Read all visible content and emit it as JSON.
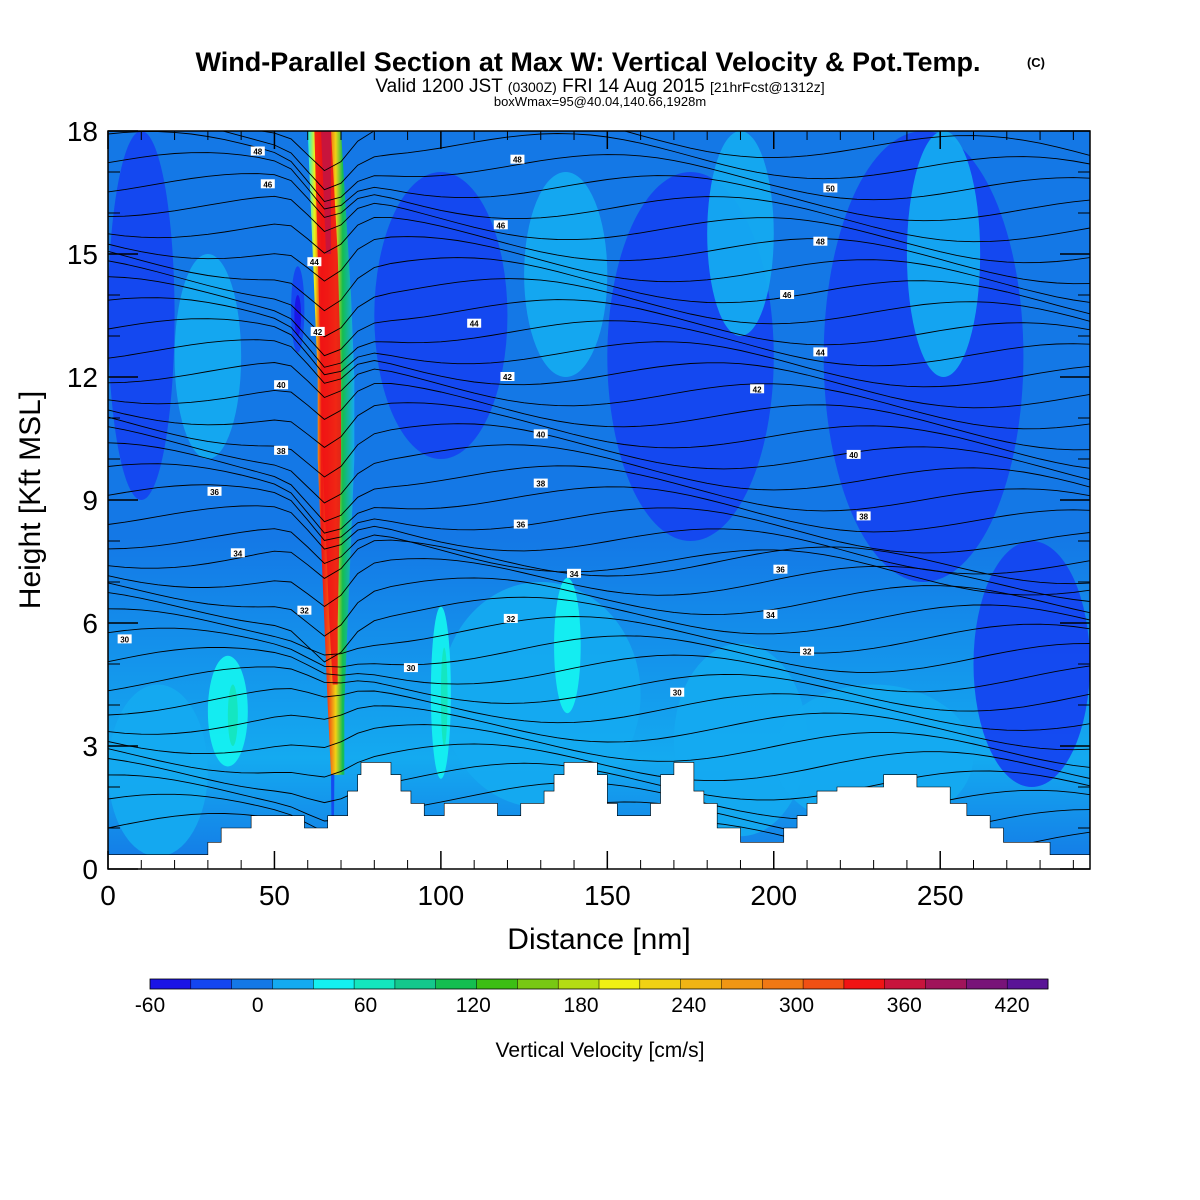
{
  "title": "Wind-Parallel Section at Max W: Vertical Velocity & Pot.Temp.",
  "copyright": "(C)",
  "subtitle_main": "Valid 1200 JST",
  "subtitle_utc": "(0300Z)",
  "subtitle_date": "FRI 14 Aug 2015",
  "subtitle_fcst": "[21hrFcst@1312z]",
  "subtitle2": "boxWmax=95@40.04,140.66,1928m",
  "chart_data": {
    "type": "heatmap",
    "xlabel": "Distance [nm]",
    "ylabel": "Height [Kft MSL]",
    "xlim": [
      0,
      295
    ],
    "ylim": [
      0,
      18
    ],
    "x_ticks": [
      "0",
      "50",
      "100",
      "150",
      "200",
      "250"
    ],
    "x_tick_values": [
      0,
      50,
      100,
      150,
      200,
      250
    ],
    "y_ticks": [
      "0",
      "3",
      "6",
      "9",
      "12",
      "15",
      "18"
    ],
    "y_tick_values": [
      0,
      3,
      6,
      9,
      12,
      15,
      18
    ],
    "colorbar": {
      "label": "Vertical Velocity [cm/s]",
      "min": -60,
      "max": 440,
      "step": 20,
      "tick_labels": [
        "-60",
        "0",
        "60",
        "120",
        "180",
        "240",
        "300",
        "360",
        "420"
      ],
      "tick_values": [
        -60,
        0,
        60,
        120,
        180,
        240,
        300,
        360,
        420
      ],
      "colors": [
        "#1a14e6",
        "#1446f0",
        "#1478e6",
        "#14aaf0",
        "#14f0f0",
        "#14e6be",
        "#14c88c",
        "#14be50",
        "#3cbe14",
        "#78c814",
        "#b4dc14",
        "#f0f014",
        "#f0d214",
        "#f0b414",
        "#f09614",
        "#f07814",
        "#f05014",
        "#f01414",
        "#c8143c",
        "#a0145a",
        "#781478",
        "#5a1496"
      ]
    },
    "theta_contour_labels": [
      {
        "x": 5,
        "z": 5.6,
        "text": "30"
      },
      {
        "x": 91,
        "z": 4.9,
        "text": "30"
      },
      {
        "x": 171,
        "z": 4.3,
        "text": "30"
      },
      {
        "x": 59,
        "z": 6.3,
        "text": "32"
      },
      {
        "x": 121,
        "z": 6.1,
        "text": "32"
      },
      {
        "x": 210,
        "z": 5.3,
        "text": "32"
      },
      {
        "x": 39,
        "z": 7.7,
        "text": "34"
      },
      {
        "x": 140,
        "z": 7.2,
        "text": "34"
      },
      {
        "x": 199,
        "z": 6.2,
        "text": "34"
      },
      {
        "x": 32,
        "z": 9.2,
        "text": "36"
      },
      {
        "x": 124,
        "z": 8.4,
        "text": "36"
      },
      {
        "x": 202,
        "z": 7.3,
        "text": "36"
      },
      {
        "x": 52,
        "z": 10.2,
        "text": "38"
      },
      {
        "x": 130,
        "z": 9.4,
        "text": "38"
      },
      {
        "x": 227,
        "z": 8.6,
        "text": "38"
      },
      {
        "x": 52,
        "z": 11.8,
        "text": "40"
      },
      {
        "x": 130,
        "z": 10.6,
        "text": "40"
      },
      {
        "x": 224,
        "z": 10.1,
        "text": "40"
      },
      {
        "x": 63,
        "z": 13.1,
        "text": "42"
      },
      {
        "x": 120,
        "z": 12.0,
        "text": "42"
      },
      {
        "x": 195,
        "z": 11.7,
        "text": "42"
      },
      {
        "x": 62,
        "z": 14.8,
        "text": "44"
      },
      {
        "x": 110,
        "z": 13.3,
        "text": "44"
      },
      {
        "x": 214,
        "z": 12.6,
        "text": "44"
      },
      {
        "x": 48,
        "z": 16.7,
        "text": "46"
      },
      {
        "x": 118,
        "z": 15.7,
        "text": "46"
      },
      {
        "x": 204,
        "z": 14.0,
        "text": "46"
      },
      {
        "x": 45,
        "z": 17.5,
        "text": "48"
      },
      {
        "x": 214,
        "z": 15.3,
        "text": "48"
      },
      {
        "x": 123,
        "z": 17.3,
        "text": "48"
      },
      {
        "x": 217,
        "z": 16.6,
        "text": "50"
      }
    ]
  }
}
